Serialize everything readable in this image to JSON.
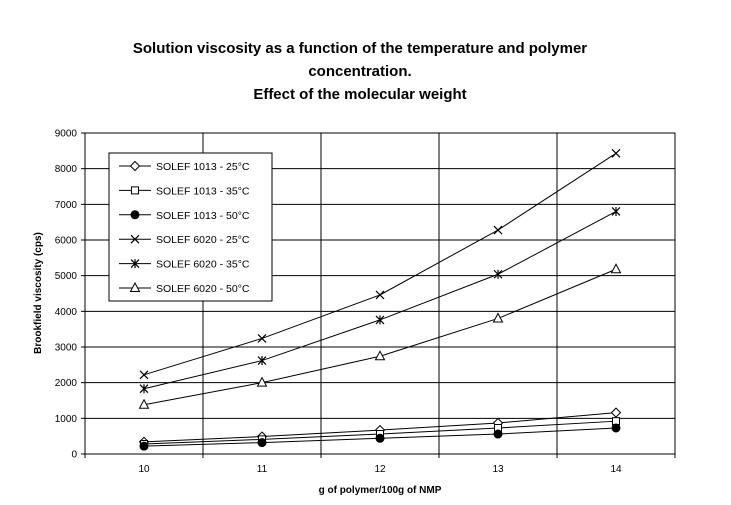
{
  "chart_data": {
    "type": "line",
    "title": [
      "Solution viscosity as a function of the temperature and polymer",
      "concentration.",
      "Effect of the molecular weight"
    ],
    "xlabel": "g of polymer/100g of NMP",
    "ylabel": "Brookfield viscosity (cps)",
    "x": [
      10,
      11,
      12,
      13,
      14
    ],
    "xlim": [
      9.5,
      14.5
    ],
    "ylim": [
      0,
      9000
    ],
    "ytick_step": 1000,
    "grid": true,
    "legend_placement": "top-left",
    "series": [
      {
        "name": "SOLEF 1013 - 25°C",
        "marker": "diamond-open",
        "values": [
          340,
          490,
          670,
          870,
          1160
        ]
      },
      {
        "name": "SOLEF 1013 - 35°C",
        "marker": "square-open",
        "values": [
          280,
          410,
          560,
          730,
          920
        ]
      },
      {
        "name": "SOLEF 1013 - 50°C",
        "marker": "circle-filled",
        "values": [
          220,
          320,
          440,
          560,
          730
        ]
      },
      {
        "name": "SOLEF 6020 - 25°C",
        "marker": "x",
        "values": [
          2220,
          3240,
          4460,
          6280,
          8430
        ]
      },
      {
        "name": "SOLEF 6020 - 35°C",
        "marker": "star",
        "values": [
          1830,
          2620,
          3760,
          5040,
          6800
        ]
      },
      {
        "name": "SOLEF 6020 - 50°C",
        "marker": "triangle-open",
        "values": [
          1380,
          2000,
          2740,
          3800,
          5180
        ]
      }
    ]
  }
}
